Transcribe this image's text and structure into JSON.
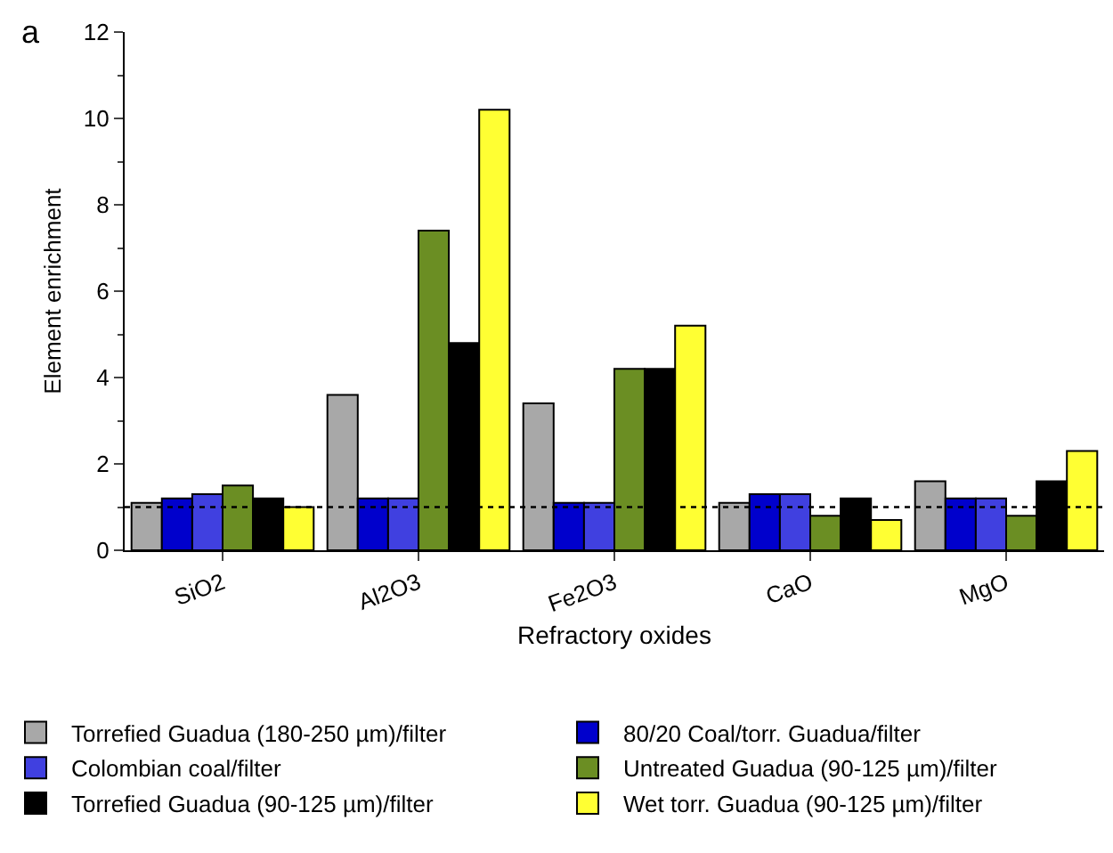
{
  "chart_data": {
    "type": "bar",
    "ylabel": "Element enrichment",
    "xlabel": "Refractory oxides",
    "annotations": [
      "a"
    ],
    "categories": [
      "SiO2",
      "Al2O3",
      "Fe2O3",
      "CaO",
      "MgO"
    ],
    "series": [
      {
        "name": "Torrefied Guadua (180-250 µm)/filter",
        "color": "#a8a8a8",
        "values": [
          1.1,
          3.6,
          3.4,
          1.1,
          1.6
        ]
      },
      {
        "name": "80/20 Coal/torr. Guadua/filter",
        "color": "#0000cc",
        "values": [
          1.2,
          1.2,
          1.1,
          1.3,
          1.2
        ]
      },
      {
        "name": "Colombian coal/filter",
        "color": "#4040e0",
        "values": [
          1.3,
          1.2,
          1.1,
          1.3,
          1.2
        ]
      },
      {
        "name": "Untreated Guadua (90-125 µm)/filter",
        "color": "#6b8e23",
        "values": [
          1.5,
          7.4,
          4.2,
          0.8,
          0.8
        ]
      },
      {
        "name": "Torrefied Guadua (90-125 µm)/filter",
        "color": "#000000",
        "values": [
          1.2,
          4.8,
          4.2,
          1.2,
          1.6
        ]
      },
      {
        "name": "Wet torr. Guadua (90-125 µm)/filter",
        "color": "#ffff33",
        "values": [
          1.0,
          10.2,
          5.2,
          0.7,
          2.3
        ]
      }
    ],
    "ylim": [
      0,
      12
    ],
    "yticks": [
      0,
      2,
      4,
      6,
      8,
      10,
      12
    ],
    "ref_lines": [
      {
        "axis": "y",
        "value": 1,
        "line_style": "dotted",
        "color": "#000000"
      }
    ],
    "legend": "bottom",
    "grid": false
  }
}
